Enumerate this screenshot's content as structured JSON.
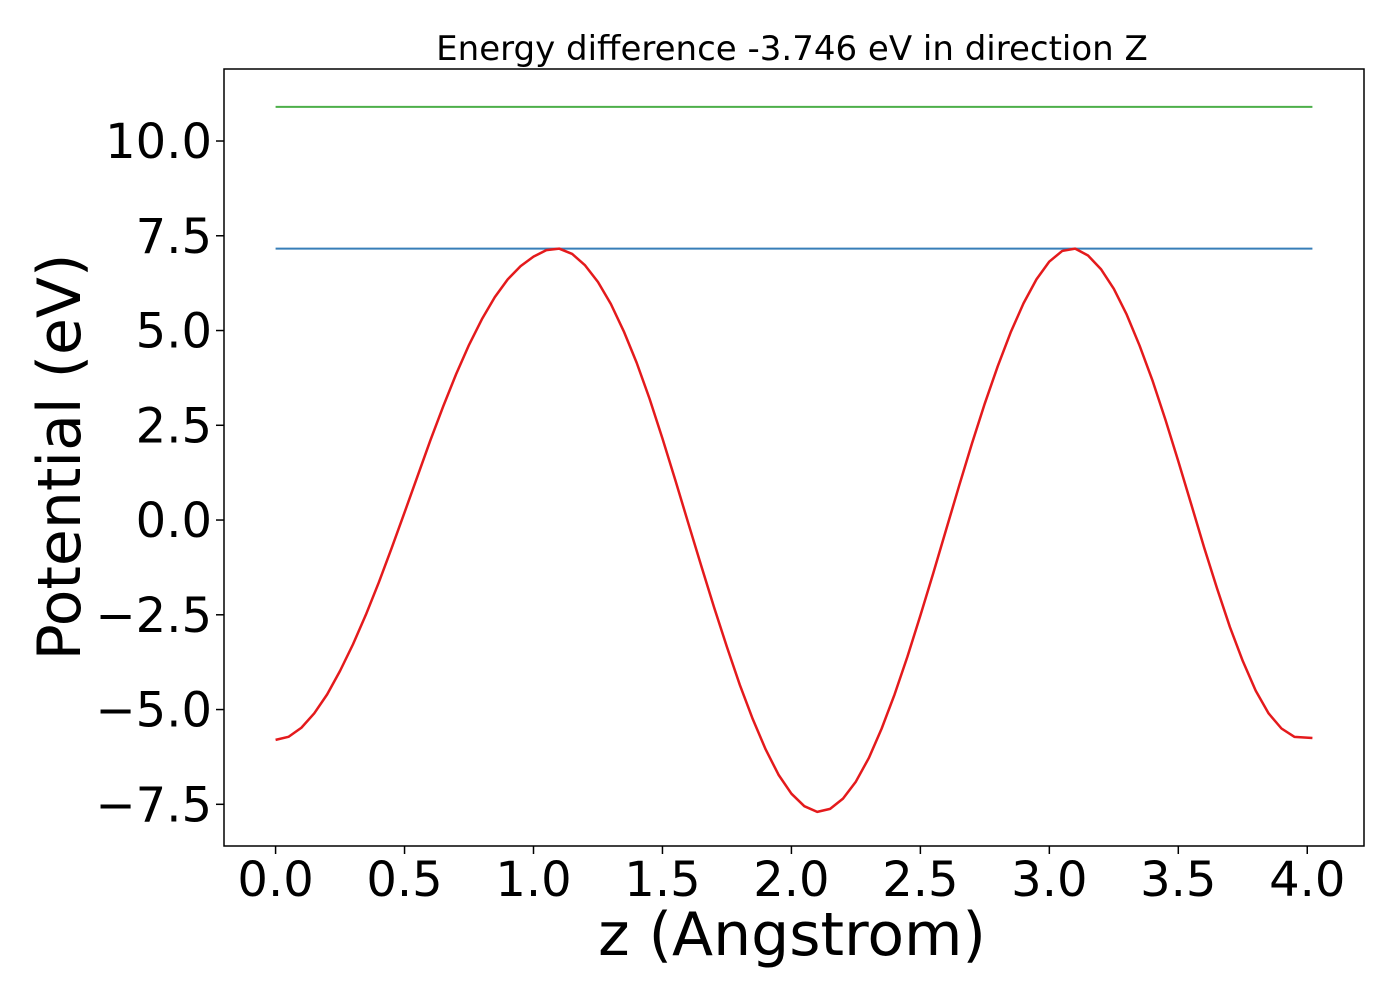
{
  "chart_data": {
    "type": "line",
    "title": "Energy difference -3.746 eV in direction Z",
    "xlabel": "z (Angstrom)",
    "ylabel": "Potential (eV)",
    "xlim": [
      -0.2,
      4.22
    ],
    "ylim": [
      -8.6,
      11.9
    ],
    "x_ticks": [
      0.0,
      0.5,
      1.0,
      1.5,
      2.0,
      2.5,
      3.0,
      3.5,
      4.0
    ],
    "x_tick_labels": [
      "0.0",
      "0.5",
      "1.0",
      "1.5",
      "2.0",
      "2.5",
      "3.0",
      "3.5",
      "4.0"
    ],
    "y_ticks": [
      -7.5,
      -5.0,
      -2.5,
      0.0,
      2.5,
      5.0,
      7.5,
      10.0
    ],
    "y_tick_labels": [
      "−7.5",
      "−5.0",
      "−2.5",
      "0.0",
      "2.5",
      "5.0",
      "7.5",
      "10.0"
    ],
    "grid": false,
    "legend": "none",
    "colors": {
      "potential": "#e41a1c",
      "max_level": "#377eb8",
      "upper_level": "#4daf4a",
      "frame": "#000000"
    },
    "series": [
      {
        "kind": "horizontal-line",
        "y": 10.9,
        "x_range": [
          0.0,
          4.02
        ],
        "color": "#4daf4a"
      },
      {
        "kind": "horizontal-line",
        "y": 7.16,
        "x_range": [
          0.0,
          4.02
        ],
        "color": "#377eb8"
      },
      {
        "kind": "curve",
        "color": "#e41a1c",
        "x": [
          0.0,
          0.05,
          0.1,
          0.15,
          0.2,
          0.25,
          0.3,
          0.35,
          0.4,
          0.45,
          0.5,
          0.55,
          0.6,
          0.65,
          0.7,
          0.75,
          0.8,
          0.85,
          0.9,
          0.95,
          1.0,
          1.05,
          1.1,
          1.15,
          1.2,
          1.25,
          1.3,
          1.35,
          1.4,
          1.45,
          1.5,
          1.55,
          1.6,
          1.65,
          1.7,
          1.75,
          1.8,
          1.85,
          1.9,
          1.95,
          2.0,
          2.05,
          2.1,
          2.15,
          2.2,
          2.25,
          2.3,
          2.35,
          2.4,
          2.45,
          2.5,
          2.55,
          2.6,
          2.65,
          2.7,
          2.75,
          2.8,
          2.85,
          2.9,
          2.95,
          3.0,
          3.05,
          3.1,
          3.15,
          3.2,
          3.25,
          3.3,
          3.35,
          3.4,
          3.45,
          3.5,
          3.55,
          3.6,
          3.65,
          3.7,
          3.75,
          3.8,
          3.85,
          3.9,
          3.95,
          4.02
        ],
        "y": [
          -5.8,
          -5.72,
          -5.48,
          -5.1,
          -4.6,
          -3.98,
          -3.28,
          -2.5,
          -1.65,
          -0.74,
          0.2,
          1.15,
          2.1,
          3.0,
          3.85,
          4.62,
          5.3,
          5.88,
          6.35,
          6.7,
          6.95,
          7.12,
          7.16,
          7.02,
          6.72,
          6.28,
          5.7,
          4.98,
          4.15,
          3.2,
          2.15,
          1.05,
          -0.08,
          -1.2,
          -2.3,
          -3.35,
          -4.35,
          -5.25,
          -6.05,
          -6.72,
          -7.22,
          -7.55,
          -7.7,
          -7.62,
          -7.35,
          -6.9,
          -6.28,
          -5.5,
          -4.6,
          -3.6,
          -2.52,
          -1.4,
          -0.25,
          0.9,
          2.02,
          3.08,
          4.06,
          4.95,
          5.72,
          6.35,
          6.82,
          7.1,
          7.16,
          6.98,
          6.62,
          6.1,
          5.42,
          4.6,
          3.68,
          2.65,
          1.55,
          0.42,
          -0.72,
          -1.8,
          -2.82,
          -3.72,
          -4.5,
          -5.1,
          -5.5,
          -5.72,
          -5.75
        ]
      }
    ]
  }
}
